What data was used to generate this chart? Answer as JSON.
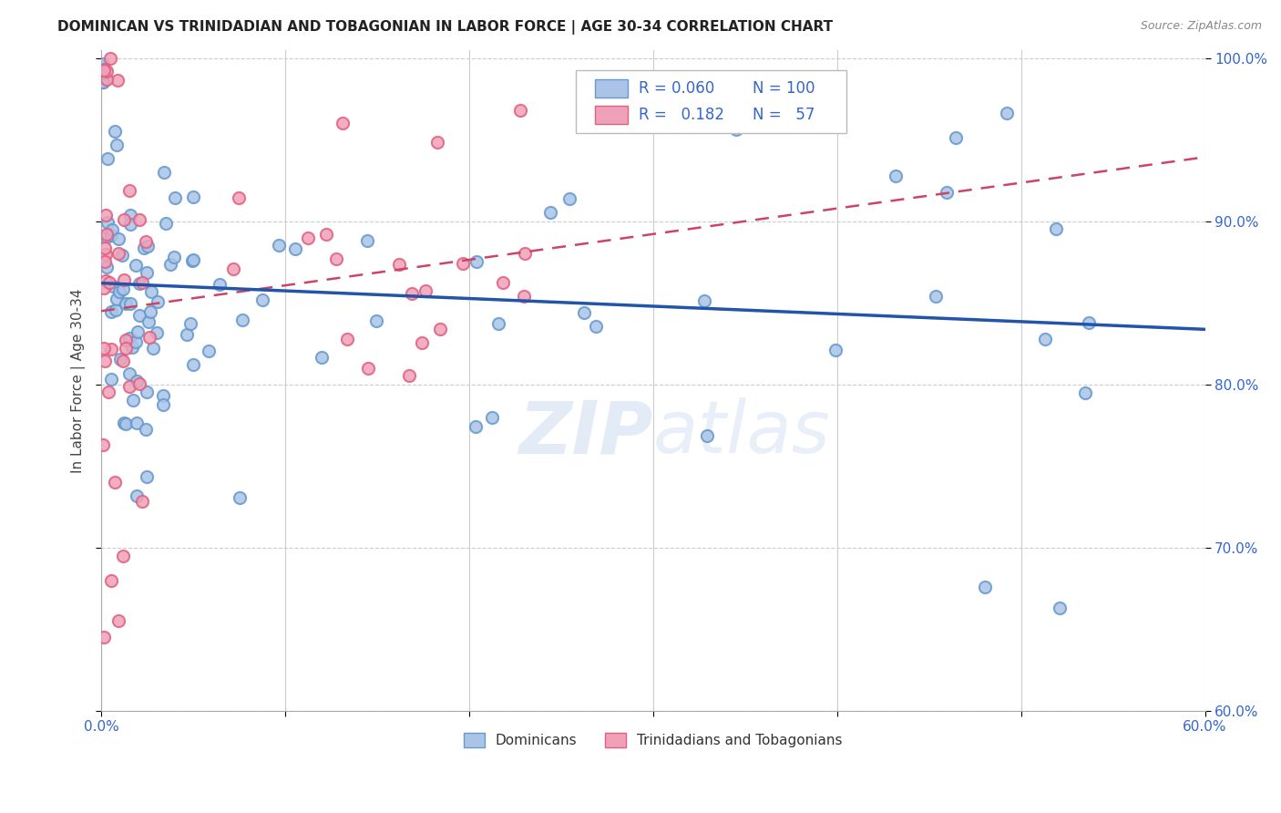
{
  "title": "DOMINICAN VS TRINIDADIAN AND TOBAGONIAN IN LABOR FORCE | AGE 30-34 CORRELATION CHART",
  "source": "Source: ZipAtlas.com",
  "ylabel": "In Labor Force | Age 30-34",
  "xlim": [
    0.0,
    0.6
  ],
  "ylim": [
    0.6,
    1.005
  ],
  "yticks": [
    0.6,
    0.7,
    0.8,
    0.9,
    1.0
  ],
  "blue_color": "#aac4e8",
  "pink_color": "#f0a0b8",
  "blue_edge": "#6699cc",
  "pink_edge": "#e06080",
  "blue_line_color": "#2255aa",
  "pink_line_color": "#cc4466",
  "label_color": "#3366cc",
  "blue_R": 0.06,
  "blue_N": 100,
  "pink_R": 0.182,
  "pink_N": 57,
  "watermark": "ZIPatlas",
  "legend_label_blue": "Dominicans",
  "legend_label_pink": "Trinidadians and Tobagonians"
}
